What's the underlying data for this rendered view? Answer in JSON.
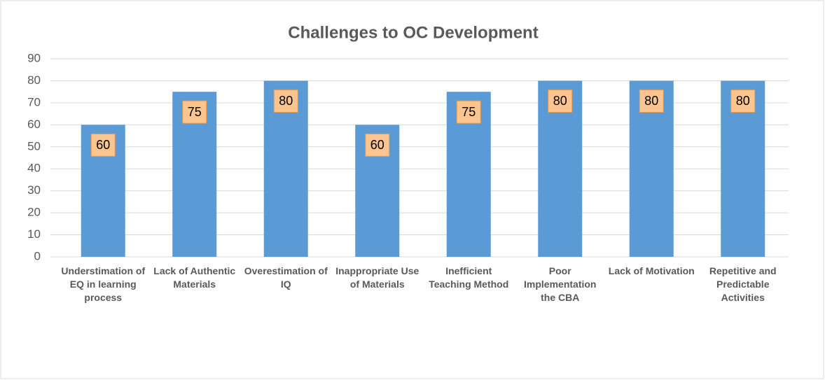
{
  "chart_data": {
    "type": "bar",
    "title": "Challenges to OC Development",
    "categories": [
      "Understimation of EQ in learning process",
      "Lack of Authentic Materials",
      "Overestimation of IQ",
      "Inappropriate Use of Materials",
      "Inefficient Teaching Method",
      "Poor Implementation the CBA",
      "Lack of Motivation",
      "Repetitive and Predictable Activities"
    ],
    "values": [
      60,
      75,
      80,
      60,
      75,
      80,
      80,
      80
    ],
    "color": "#5b9bd5",
    "ylim": [
      0,
      90
    ],
    "yticks": [
      0,
      10,
      20,
      30,
      40,
      50,
      60,
      70,
      80,
      90
    ],
    "grid": true
  }
}
